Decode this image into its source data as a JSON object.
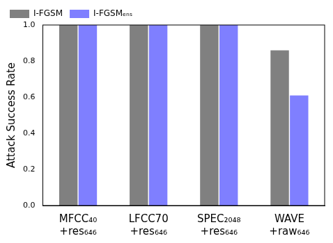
{
  "chart_data": {
    "type": "bar",
    "y_label": "Attack Success Rate",
    "categories": [
      "MFCC₄₀ +res₆₄₆",
      "LFCC70 +res₆₄₆",
      "SPEC₂₀₄₈ +res₆₄₆",
      "WAVE +raw₆₄₆"
    ],
    "series": [
      {
        "name": "I-FGSM",
        "color": "#808080",
        "values": [
          1.0,
          1.0,
          1.0,
          0.86
        ]
      },
      {
        "name": "I-FGSMₑₙₛ",
        "color": "#7f7fff",
        "values": [
          1.0,
          1.0,
          1.0,
          0.61
        ]
      }
    ],
    "ylim": [
      0,
      1.0
    ],
    "yticks": [
      {
        "value": 0,
        "label": "0.0"
      },
      0.2,
      0.4,
      0.6,
      0.8,
      {
        "value": 1.0,
        "label": "1.0"
      }
    ],
    "grid": false,
    "legend": "upper left"
  }
}
